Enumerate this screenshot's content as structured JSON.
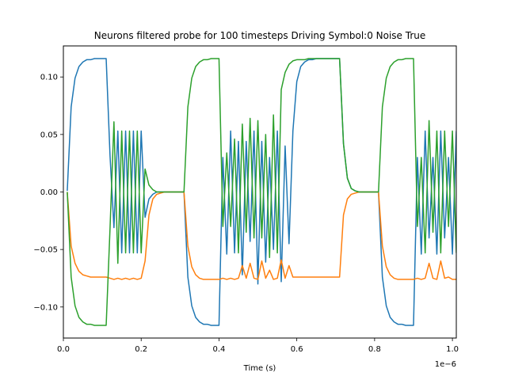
{
  "chart_data": {
    "type": "line",
    "title": "Neurons filtered probe for 100 timesteps Driving Symbol:0 Noise True",
    "xlabel": "Time (s)",
    "ylabel": "",
    "x_offset_label": "1e−6",
    "xlim": [
      0.0,
      1.01
    ],
    "ylim": [
      -0.127,
      0.127
    ],
    "x_ticks": [
      0.0,
      0.2,
      0.4,
      0.6,
      0.8,
      1.0
    ],
    "x_tick_labels": [
      "0.0",
      "0.2",
      "0.4",
      "0.6",
      "0.8",
      "1.0"
    ],
    "y_ticks": [
      -0.1,
      -0.05,
      0.0,
      0.05,
      0.1
    ],
    "y_tick_labels": [
      "−0.10",
      "−0.05",
      "0.00",
      "0.05",
      "0.10"
    ],
    "grid": false,
    "colors": [
      "#1f77b4",
      "#ff7f0e",
      "#2ca02c"
    ],
    "x": [
      0.01,
      0.02,
      0.03,
      0.04,
      0.05,
      0.06,
      0.07,
      0.08,
      0.09,
      0.1,
      0.11,
      0.12,
      0.13,
      0.14,
      0.15,
      0.16,
      0.17,
      0.18,
      0.19,
      0.2,
      0.21,
      0.22,
      0.23,
      0.24,
      0.25,
      0.26,
      0.27,
      0.28,
      0.29,
      0.3,
      0.31,
      0.32,
      0.33,
      0.34,
      0.35,
      0.36,
      0.37,
      0.38,
      0.39,
      0.4,
      0.41,
      0.42,
      0.43,
      0.44,
      0.45,
      0.46,
      0.47,
      0.48,
      0.49,
      0.5,
      0.51,
      0.52,
      0.53,
      0.54,
      0.55,
      0.56,
      0.57,
      0.58,
      0.59,
      0.6,
      0.61,
      0.62,
      0.63,
      0.64,
      0.65,
      0.66,
      0.67,
      0.68,
      0.69,
      0.7,
      0.71,
      0.72,
      0.73,
      0.74,
      0.75,
      0.76,
      0.77,
      0.78,
      0.79,
      0.8,
      0.81,
      0.82,
      0.83,
      0.84,
      0.85,
      0.86,
      0.87,
      0.88,
      0.89,
      0.9,
      0.91,
      0.92,
      0.93,
      0.94,
      0.95,
      0.96,
      0.97,
      0.98,
      0.99,
      1.0,
      1.01
    ],
    "series": [
      {
        "values": [
          0.001,
          0.074,
          0.099,
          0.109,
          0.113,
          0.115,
          0.115,
          0.116,
          0.116,
          0.116,
          0.116,
          0.031,
          -0.031,
          0.053,
          -0.053,
          0.053,
          -0.053,
          0.053,
          -0.053,
          0.053,
          -0.022,
          -0.006,
          -0.002,
          0.0,
          0.0,
          0.0,
          0.0,
          0.0,
          0.0,
          0.0,
          0.0,
          -0.074,
          -0.099,
          -0.109,
          -0.113,
          -0.115,
          -0.115,
          -0.116,
          -0.116,
          -0.116,
          0.03,
          -0.054,
          0.053,
          -0.053,
          0.044,
          -0.072,
          0.044,
          -0.043,
          0.053,
          -0.08,
          0.044,
          -0.061,
          0.03,
          -0.05,
          0.053,
          -0.078,
          0.04,
          -0.045,
          0.053,
          0.096,
          0.109,
          0.113,
          0.115,
          0.115,
          0.116,
          0.116,
          0.116,
          0.116,
          0.116,
          0.116,
          0.116,
          0.042,
          0.012,
          0.003,
          0.001,
          0.0,
          0.0,
          0.0,
          0.0,
          0.0,
          0.0,
          -0.074,
          -0.099,
          -0.109,
          -0.113,
          -0.115,
          -0.115,
          -0.116,
          -0.116,
          -0.116,
          0.03,
          -0.054,
          0.053,
          -0.04,
          0.03,
          -0.054,
          0.053,
          -0.04,
          0.03,
          -0.054,
          0.053
        ]
      },
      {
        "values": [
          0.0,
          -0.047,
          -0.062,
          -0.069,
          -0.072,
          -0.073,
          -0.074,
          -0.074,
          -0.074,
          -0.074,
          -0.074,
          -0.075,
          -0.076,
          -0.075,
          -0.076,
          -0.075,
          -0.076,
          -0.075,
          -0.076,
          -0.075,
          -0.06,
          -0.02,
          -0.006,
          -0.002,
          -0.001,
          0.0,
          0.0,
          0.0,
          0.0,
          0.0,
          0.0,
          -0.047,
          -0.065,
          -0.072,
          -0.075,
          -0.076,
          -0.076,
          -0.076,
          -0.076,
          -0.076,
          -0.075,
          -0.076,
          -0.075,
          -0.076,
          -0.075,
          -0.064,
          -0.075,
          -0.062,
          -0.075,
          -0.076,
          -0.06,
          -0.075,
          -0.068,
          -0.076,
          -0.075,
          -0.059,
          -0.075,
          -0.064,
          -0.074,
          -0.074,
          -0.074,
          -0.074,
          -0.074,
          -0.074,
          -0.074,
          -0.074,
          -0.074,
          -0.074,
          -0.074,
          -0.074,
          -0.074,
          -0.02,
          -0.006,
          -0.002,
          -0.001,
          0.0,
          0.0,
          0.0,
          0.0,
          0.0,
          0.0,
          -0.047,
          -0.065,
          -0.072,
          -0.075,
          -0.076,
          -0.076,
          -0.076,
          -0.076,
          -0.076,
          -0.075,
          -0.076,
          -0.075,
          -0.062,
          -0.075,
          -0.076,
          -0.06,
          -0.075,
          -0.074,
          -0.076,
          -0.076
        ]
      },
      {
        "values": [
          0.0,
          -0.074,
          -0.099,
          -0.109,
          -0.113,
          -0.115,
          -0.115,
          -0.116,
          -0.116,
          -0.116,
          -0.116,
          -0.031,
          0.061,
          -0.062,
          0.053,
          -0.053,
          0.053,
          -0.053,
          0.053,
          -0.053,
          0.02,
          0.006,
          0.002,
          0.0,
          0.0,
          0.0,
          0.0,
          0.0,
          0.0,
          0.0,
          0.0,
          0.074,
          0.099,
          0.109,
          0.113,
          0.115,
          0.115,
          0.116,
          0.116,
          0.116,
          -0.03,
          0.034,
          -0.03,
          0.046,
          -0.053,
          0.059,
          -0.035,
          0.064,
          -0.04,
          0.062,
          -0.04,
          0.05,
          -0.057,
          0.067,
          -0.053,
          0.089,
          0.104,
          0.111,
          0.114,
          0.115,
          0.115,
          0.115,
          0.116,
          0.116,
          0.116,
          0.116,
          0.116,
          0.116,
          0.116,
          0.116,
          0.116,
          0.042,
          0.012,
          0.003,
          0.001,
          0.0,
          0.0,
          0.0,
          0.0,
          0.0,
          0.0,
          0.074,
          0.099,
          0.109,
          0.113,
          0.115,
          0.115,
          0.116,
          0.116,
          0.116,
          -0.03,
          0.03,
          -0.053,
          0.062,
          -0.035,
          0.053,
          -0.053,
          0.053,
          -0.03,
          0.053,
          -0.053
        ]
      }
    ]
  }
}
